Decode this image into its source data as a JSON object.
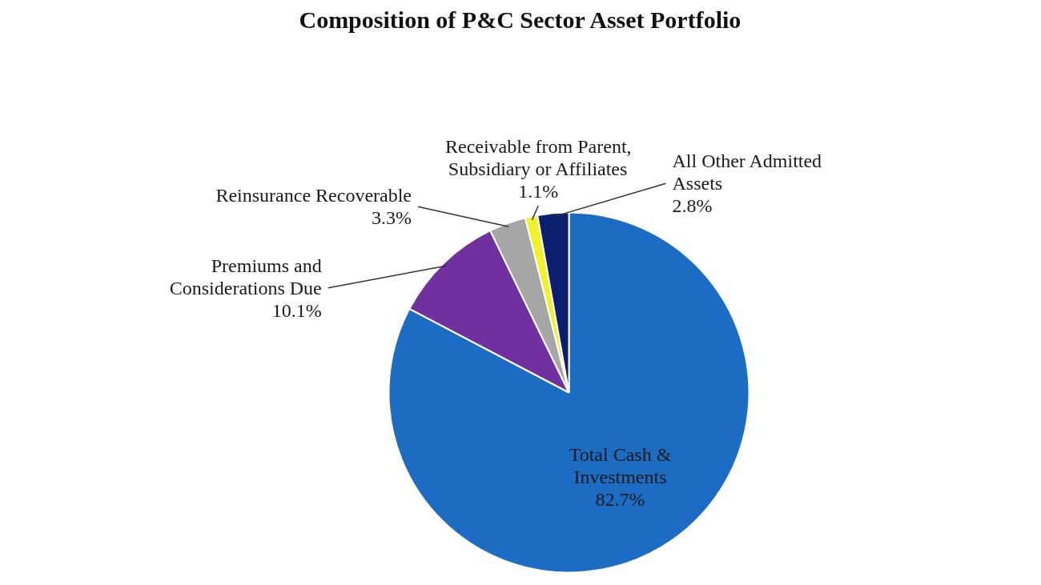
{
  "chart_data": {
    "type": "pie",
    "title": "Composition of P&C Sector Asset Portfolio",
    "categories": [
      "Total Cash & Investments",
      "Premiums and Considerations Due",
      "Reinsurance Recoverable",
      "Receivable from Parent, Subsidiary or Affiliates",
      "All Other Admitted Assets"
    ],
    "values": [
      82.7,
      10.1,
      3.3,
      1.1,
      2.8
    ],
    "colors": [
      "#1b6cc2",
      "#7030a0",
      "#a6a6a6",
      "#f2f22a",
      "#0c1f6e"
    ],
    "value_labels": [
      "82.7%",
      "10.1%",
      "3.3%",
      "1.1%",
      "2.8%"
    ]
  }
}
